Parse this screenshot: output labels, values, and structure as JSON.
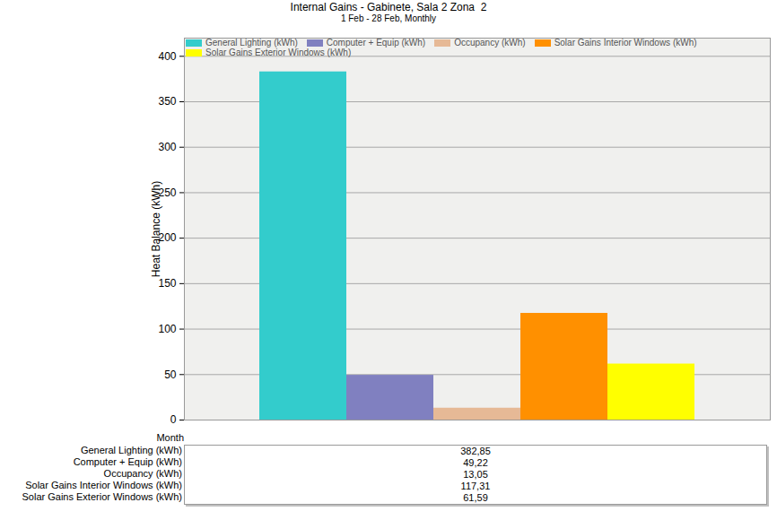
{
  "chart_data": {
    "type": "bar",
    "title": "Internal Gains - Gabinete, Sala 2 Zona  2",
    "subtitle": "1 Feb - 28 Feb, Monthly",
    "x_label": "Month",
    "y_label": "Heat Balance (kWh)",
    "categories": [
      null
    ],
    "series": [
      {
        "name": "General Lighting (kWh)",
        "color": "#33cccc",
        "values": [
          382.85
        ],
        "value_labels": [
          "382,85"
        ]
      },
      {
        "name": "Computer + Equip (kWh)",
        "color": "#8080c0",
        "values": [
          49.22
        ],
        "value_labels": [
          "49,22"
        ]
      },
      {
        "name": "Occupancy (kWh)",
        "color": "#e6b996",
        "values": [
          13.05
        ],
        "value_labels": [
          "13,05"
        ]
      },
      {
        "name": "Solar Gains Interior Windows (kWh)",
        "color": "#ff9000",
        "values": [
          117.31
        ],
        "value_labels": [
          "117,31"
        ]
      },
      {
        "name": "Solar Gains Exterior Windows (kWh)",
        "color": "#ffff00",
        "values": [
          61.59
        ],
        "value_labels": [
          "61,59"
        ]
      }
    ],
    "ylim": [
      0,
      420
    ],
    "yticks": [
      0,
      50,
      100,
      150,
      200,
      250,
      300,
      350,
      400
    ],
    "grid": true,
    "legend": "top"
  }
}
